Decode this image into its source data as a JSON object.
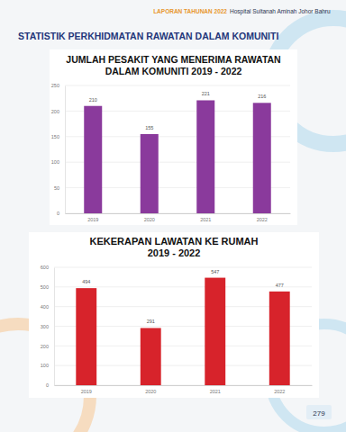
{
  "page": {
    "report": "LAPORAN TAHUNAN 2022",
    "hospital": "Hospital Sultanah Aminah Johor Bahru",
    "section_title": "STATISTIK PERKHIDMATAN RAWATAN DALAM KOMUNITI",
    "page_number": "279"
  },
  "chart_data": [
    {
      "type": "bar",
      "title": "JUMLAH PESAKIT YANG MENERIMA RAWATAN\nDALAM KOMUNITI 2019 - 2022",
      "categories": [
        "2019",
        "2020",
        "2021",
        "2022"
      ],
      "values": [
        210,
        155,
        221,
        216
      ],
      "color": "#8a3a9c",
      "ylim": [
        0,
        250
      ],
      "yticks": [
        0,
        50,
        100,
        150,
        200,
        250
      ],
      "grid": true,
      "data_labels": true
    },
    {
      "type": "bar",
      "title": "KEKERAPAN LAWATAN KE RUMAH\n2019 - 2022",
      "categories": [
        "2019",
        "2020",
        "2021",
        "2022"
      ],
      "values": [
        494,
        291,
        547,
        477
      ],
      "color": "#d7232b",
      "ylim": [
        0,
        600
      ],
      "yticks": [
        0,
        100,
        200,
        300,
        400,
        500,
        600
      ],
      "grid": true,
      "data_labels": true
    }
  ]
}
